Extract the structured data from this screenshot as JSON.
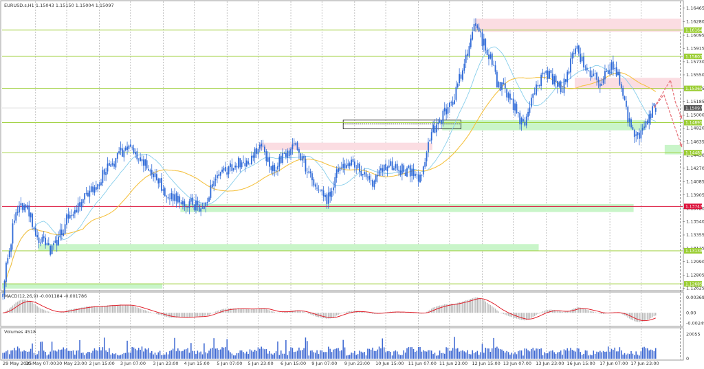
{
  "header": {
    "symbol_info": "EURUSD.s,H1 1.15043 1.15150 1.15004 1.15097"
  },
  "chart_data": [
    {
      "type": "candlestick",
      "title": "EURUSD.s,H1",
      "ohlc_last": {
        "open": 1.15043,
        "high": 1.1515,
        "low": 1.15004,
        "close": 1.15097
      },
      "ylim": [
        1.1262,
        1.1652
      ],
      "y_ticks": [
        "1.16465",
        "1.16280",
        "1.16095",
        "1.15915",
        "1.15730",
        "1.15550",
        "1.15365",
        "1.15185",
        "1.15000",
        "1.14820",
        "1.14635",
        "1.14450",
        "1.14270",
        "1.14085",
        "1.13905",
        "1.13720",
        "1.13540",
        "1.13355",
        "1.13175",
        "1.12990",
        "1.12805",
        "1.12625"
      ],
      "x_ticks": [
        "29 May 2025",
        "30 May 07:00",
        "30 May 23:00",
        "2 Jun 15:00",
        "3 Jun 07:00",
        "3 Jun 23:00",
        "4 Jun 15:00",
        "5 Jun 07:00",
        "5 Jun 23:00",
        "6 Jun 15:00",
        "9 Jun 07:00",
        "9 Jun 23:00",
        "10 Jun 15:00",
        "11 Jun 07:00",
        "11 Jun 23:00",
        "12 Jun 15:00",
        "13 Jun 07:00",
        "13 Jun 23:00",
        "16 Jun 15:00",
        "17 Jun 07:00",
        "17 Jun 23:00"
      ],
      "key_path": [
        [
          0,
          1.1262
        ],
        [
          8,
          1.137
        ],
        [
          14,
          1.1375
        ],
        [
          22,
          1.133
        ],
        [
          30,
          1.1315
        ],
        [
          40,
          1.136
        ],
        [
          52,
          1.139
        ],
        [
          62,
          1.142
        ],
        [
          75,
          1.1455
        ],
        [
          90,
          1.143
        ],
        [
          100,
          1.139
        ],
        [
          110,
          1.138
        ],
        [
          122,
          1.1375
        ],
        [
          130,
          1.141
        ],
        [
          140,
          1.143
        ],
        [
          150,
          1.144
        ],
        [
          158,
          1.1455
        ],
        [
          165,
          1.1425
        ],
        [
          172,
          1.1445
        ],
        [
          180,
          1.1455
        ],
        [
          188,
          1.1415
        ],
        [
          198,
          1.1385
        ],
        [
          205,
          1.1425
        ],
        [
          214,
          1.1435
        ],
        [
          225,
          1.1405
        ],
        [
          235,
          1.143
        ],
        [
          245,
          1.1425
        ],
        [
          256,
          1.1415
        ],
        [
          262,
          1.1475
        ],
        [
          268,
          1.1495
        ],
        [
          276,
          1.1525
        ],
        [
          283,
          1.158
        ],
        [
          288,
          1.162
        ],
        [
          296,
          1.159
        ],
        [
          302,
          1.1545
        ],
        [
          310,
          1.1525
        ],
        [
          318,
          1.1485
        ],
        [
          326,
          1.1545
        ],
        [
          334,
          1.1555
        ],
        [
          342,
          1.1535
        ],
        [
          350,
          1.1595
        ],
        [
          356,
          1.1565
        ],
        [
          364,
          1.1545
        ],
        [
          372,
          1.1565
        ],
        [
          378,
          1.1545
        ],
        [
          382,
          1.1495
        ],
        [
          388,
          1.147
        ],
        [
          394,
          1.149
        ],
        [
          398,
          1.151
        ]
      ],
      "ma_fast_color": "#87ceeb",
      "ma_slow_color": "#f5c242",
      "levels": [
        {
          "price": 1.16164,
          "label": "1.16164",
          "color": "#9acd32"
        },
        {
          "price": 1.15803,
          "label": "1.15803",
          "color": "#9acd32"
        },
        {
          "price": 1.15365,
          "label": "1.15365",
          "color": "#9acd32"
        },
        {
          "price": 1.14895,
          "label": "1.14895",
          "color": "#9acd32"
        },
        {
          "price": 1.14483,
          "label": "1.14483",
          "color": "#9acd32"
        },
        {
          "price": 1.13747,
          "label": "1.13747",
          "color": "#dc143c"
        },
        {
          "price": 1.13138,
          "label": "1.13138",
          "color": "#9acd32"
        },
        {
          "price": 1.12685,
          "label": "1.12685",
          "color": "#9acd32"
        }
      ],
      "current_price": {
        "price": 1.15097,
        "label": "1.15097",
        "color": "#555555"
      },
      "zones": [
        {
          "type": "supply",
          "color": "#fbdde2",
          "from_bar": 289,
          "to_bar": 415,
          "y_top": 1.1632,
          "y_bottom": 1.1614
        },
        {
          "type": "supply",
          "color": "#fbdde2",
          "from_bar": 350,
          "to_bar": 415,
          "y_top": 1.1551,
          "y_bottom": 1.1535
        },
        {
          "type": "supply",
          "color": "#fbdde2",
          "from_bar": 157,
          "to_bar": 262,
          "y_top": 1.1462,
          "y_bottom": 1.1452
        },
        {
          "type": "demand",
          "color": "#c9f5c9",
          "from_bar": 269,
          "to_bar": 392,
          "y_top": 1.1493,
          "y_bottom": 1.1479
        },
        {
          "type": "demand",
          "color": "#c9f5c9",
          "from_bar": 405,
          "to_bar": 415,
          "y_top": 1.1459,
          "y_bottom": 1.1446
        },
        {
          "type": "demand",
          "color": "#c9f5c9",
          "from_bar": 109,
          "to_bar": 385,
          "y_top": 1.1378,
          "y_bottom": 1.1367
        },
        {
          "type": "demand",
          "color": "#c9f5c9",
          "from_bar": 22,
          "to_bar": 327,
          "y_top": 1.1323,
          "y_bottom": 1.1314
        },
        {
          "type": "demand",
          "color": "#c9f5c9",
          "from_bar": 0,
          "to_bar": 97,
          "y_top": 1.1269,
          "y_bottom": 1.1262
        }
      ],
      "forecast_path": [
        [
          398,
          1.151
        ],
        [
          404,
          1.1528
        ],
        [
          410,
          1.1488
        ],
        [
          415,
          1.1456
        ]
      ],
      "forecast_path_2": [
        [
          398,
          1.151
        ],
        [
          408,
          1.1548
        ],
        [
          411,
          1.1518
        ],
        [
          415,
          1.1495
        ]
      ],
      "forecast_color": "#e8777f"
    },
    {
      "type": "macd",
      "title": "MACD(12,26,9) -0.001184 -0.001786",
      "ylim": [
        -0.0028,
        0.0042
      ],
      "y_ticks": [
        "0.003692",
        "0.00",
        "-0.002494"
      ],
      "histogram_color": "#b9b9b9",
      "signal_color": "#e0202b"
    },
    {
      "type": "bar",
      "title": "Volumes 4518",
      "ylim": [
        0,
        22000
      ],
      "y_ticks": [
        "20055",
        "0"
      ],
      "color": "#3c67d2"
    }
  ]
}
